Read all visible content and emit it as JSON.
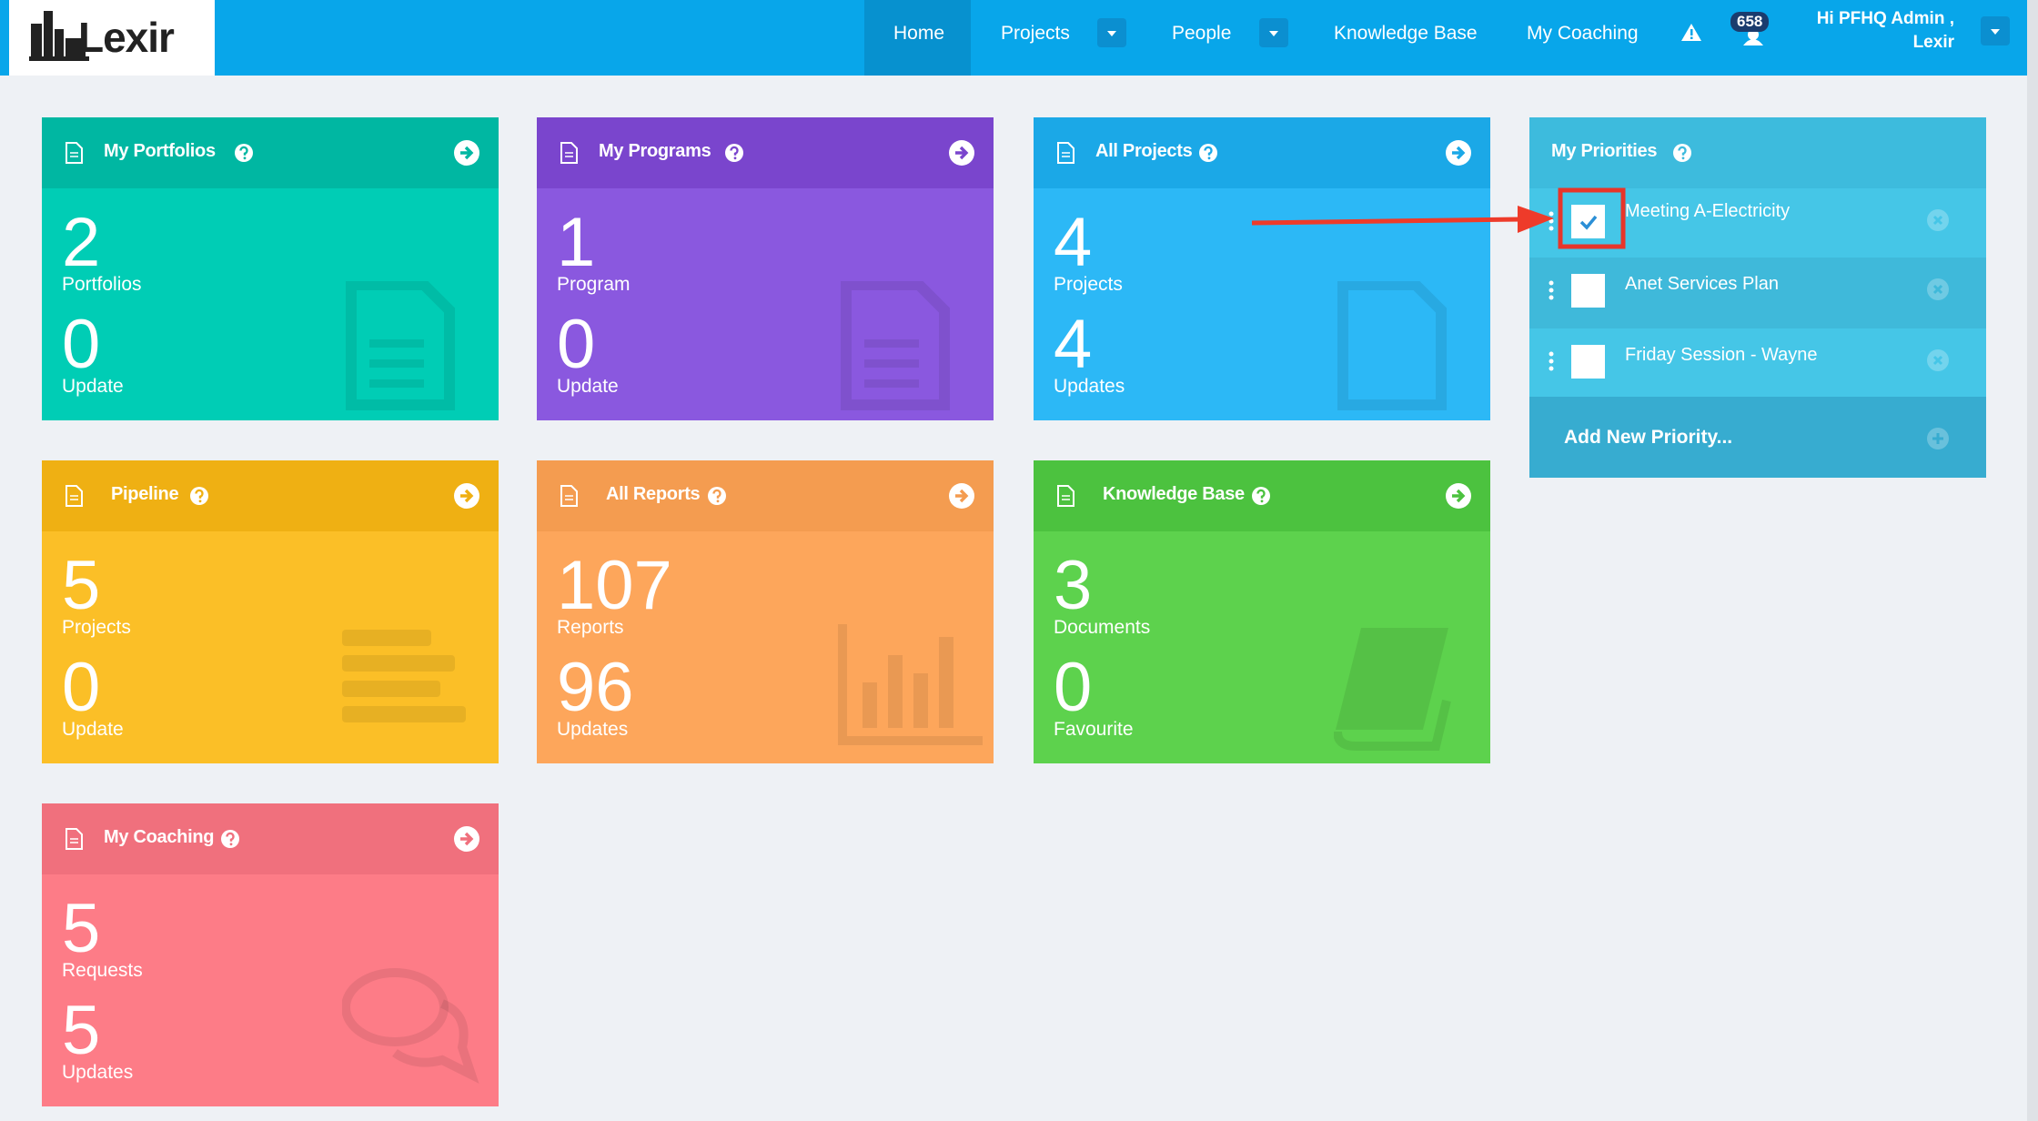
{
  "logo": "Lexir",
  "nav": {
    "items": [
      "Home",
      "Projects",
      "People",
      "Knowledge Base",
      "My Coaching"
    ],
    "badge": "658",
    "greeting": "Hi PFHQ Admin ,",
    "user": "Lexir"
  },
  "cards": [
    {
      "title": "My Portfolios",
      "num1": "2",
      "label1": "Portfolios",
      "num2": "0",
      "label2": "Update"
    },
    {
      "title": "My Programs",
      "num1": "1",
      "label1": "Program",
      "num2": "0",
      "label2": "Update"
    },
    {
      "title": "All Projects",
      "num1": "4",
      "label1": "Projects",
      "num2": "4",
      "label2": "Updates"
    },
    {
      "title": "Pipeline",
      "num1": "5",
      "label1": "Projects",
      "num2": "0",
      "label2": "Update"
    },
    {
      "title": "All Reports",
      "num1": "107",
      "label1": "Reports",
      "num2": "96",
      "label2": "Updates"
    },
    {
      "title": "Knowledge Base",
      "num1": "3",
      "label1": "Documents",
      "num2": "0",
      "label2": "Favourite"
    },
    {
      "title": "My Coaching",
      "num1": "5",
      "label1": "Requests",
      "num2": "5",
      "label2": "Updates"
    }
  ],
  "priorities": {
    "title": "My Priorities",
    "items": [
      "Meeting A-Electricity",
      "Anet Services Plan",
      "Friday Session - Wayne"
    ],
    "add": "Add New Priority..."
  }
}
